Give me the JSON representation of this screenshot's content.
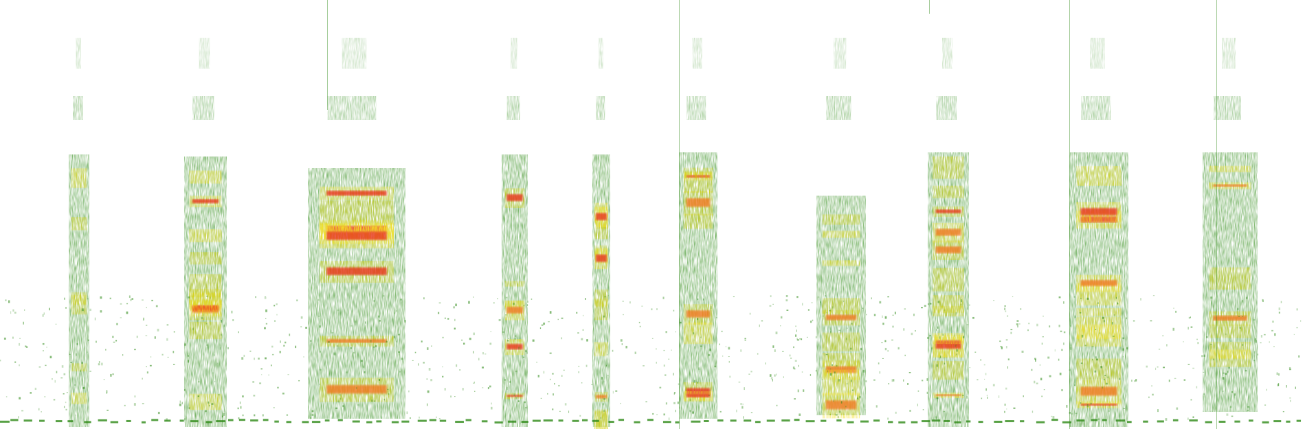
{
  "image": {
    "kind": "spectrogram",
    "background_color": "#ffffff",
    "palette": {
      "low": "#2e8a16",
      "mid_low": "#7fb21f",
      "mid": "#d6d21a",
      "high": "#f5e22a",
      "peak": "#f07a22",
      "max": "#e8341c"
    },
    "segment_count": 11,
    "has_baseline_dashes": true
  }
}
